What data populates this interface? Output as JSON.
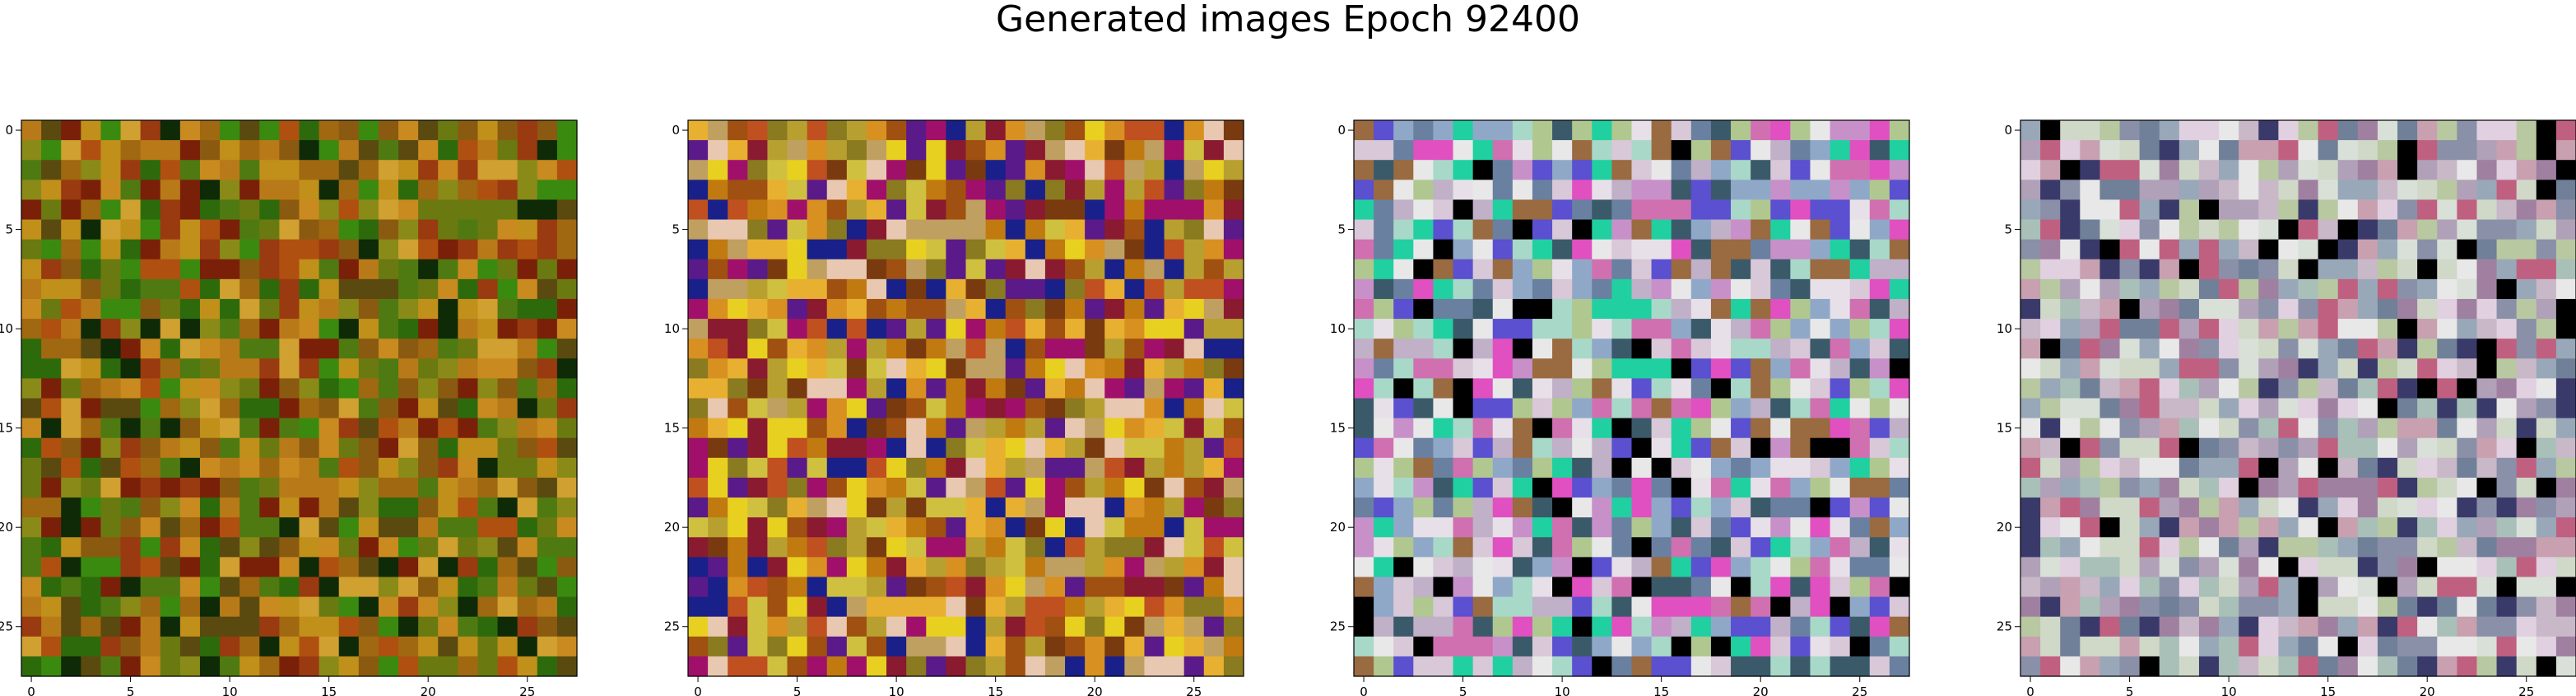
{
  "figure": {
    "title": "Generated images Epoch 92400"
  },
  "chart_data": [
    {
      "type": "heatmap",
      "rows": 28,
      "cols": 28,
      "xlim": [
        0,
        27
      ],
      "ylim": [
        27,
        0
      ],
      "x_ticks": [
        0,
        5,
        10,
        15,
        20,
        25
      ],
      "y_ticks": [
        0,
        5,
        10,
        15,
        20,
        25
      ],
      "palette": [
        "#8a5a10",
        "#a06810",
        "#b87a18",
        "#c98a20",
        "#6a7a10",
        "#4f7a12",
        "#3a8a10",
        "#2d6a0c",
        "#7a2008",
        "#9a3a10",
        "#c0901a",
        "#d0a030",
        "#5a4a10",
        "#8a8a18",
        "#b05010",
        "#0e2a06"
      ],
      "seed": 101,
      "grid": false,
      "legend": "none"
    },
    {
      "type": "heatmap",
      "rows": 28,
      "cols": 28,
      "xlim": [
        0,
        27
      ],
      "ylim": [
        27,
        0
      ],
      "x_ticks": [
        0,
        5,
        10,
        15,
        20,
        25
      ],
      "y_ticks": [
        0,
        5,
        10,
        15,
        20,
        25
      ],
      "palette": [
        "#c07a10",
        "#d89020",
        "#e8b030",
        "#a05010",
        "#b8a030",
        "#8a7a20",
        "#d0c040",
        "#c05020",
        "#8a1a30",
        "#a0106a",
        "#5a1a8a",
        "#1a208a",
        "#e8d020",
        "#7a3a10",
        "#e8c8b0",
        "#c0a060"
      ],
      "seed": 202,
      "grid": false,
      "legend": "none"
    },
    {
      "type": "heatmap",
      "rows": 28,
      "cols": 28,
      "xlim": [
        0,
        27
      ],
      "ylim": [
        27,
        0
      ],
      "x_ticks": [
        0,
        5,
        10,
        15,
        20,
        25
      ],
      "y_ticks": [
        0,
        5,
        10,
        15,
        20,
        25
      ],
      "palette": [
        "#d8c8d8",
        "#c0b0c8",
        "#a8d8c8",
        "#e8e0e8",
        "#c890c8",
        "#90a8c8",
        "#d070b0",
        "#b0c890",
        "#6a80a0",
        "#3a5a6a",
        "#20d0a0",
        "#e050c0",
        "#5a50d0",
        "#000000",
        "#9a6a40",
        "#e8e8e8"
      ],
      "seed": 303,
      "grid": false,
      "legend": "none"
    },
    {
      "type": "heatmap",
      "rows": 28,
      "cols": 28,
      "xlim": [
        0,
        27
      ],
      "ylim": [
        27,
        0
      ],
      "x_ticks": [
        0,
        5,
        10,
        15,
        20,
        25
      ],
      "y_ticks": [
        0,
        5,
        10,
        15,
        20,
        25
      ],
      "palette": [
        "#c8b8c8",
        "#b0a0b8",
        "#d0d8c8",
        "#a8c0b8",
        "#e0d0e0",
        "#98a8b8",
        "#c8a0b0",
        "#b8c8a0",
        "#a080a0",
        "#8a90a8",
        "#d8e0d8",
        "#708098",
        "#c06080",
        "#3a3a6a",
        "#000000",
        "#e8e8e8"
      ],
      "seed": 404,
      "grid": false,
      "legend": "none"
    }
  ]
}
